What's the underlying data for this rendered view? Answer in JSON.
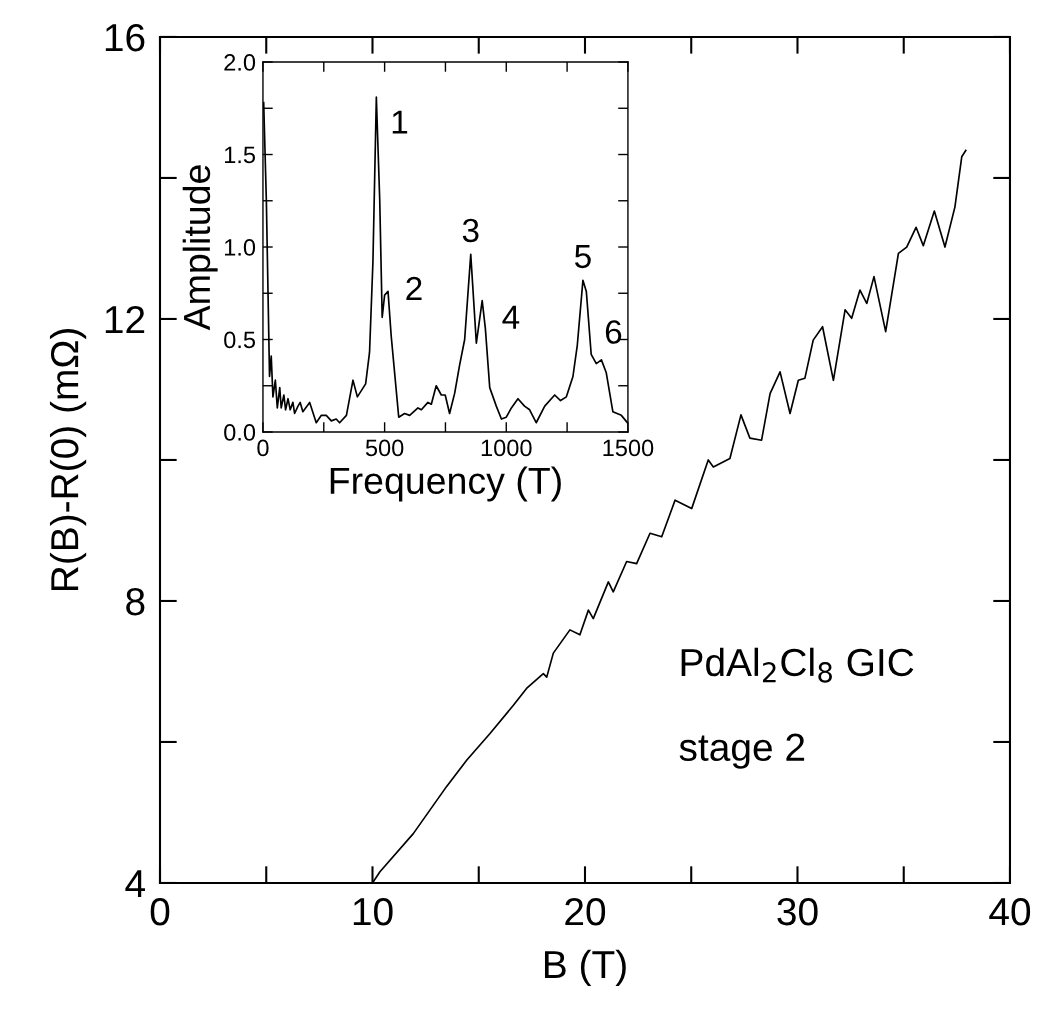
{
  "chart_data": [
    {
      "type": "line",
      "xlabel": "B (T)",
      "ylabel": "R(B)-R(0) (mΩ)",
      "xlim": [
        0,
        40
      ],
      "ylim": [
        4,
        16
      ],
      "xticks": [
        0,
        10,
        20,
        30,
        40
      ],
      "yticks": [
        4,
        8,
        12,
        16
      ],
      "series": [
        {
          "color": "#000000",
          "x": [
            10.0,
            10.35,
            11.92,
            13.49,
            14.43,
            15.53,
            16.63,
            17.25,
            18.04,
            18.2,
            18.51,
            19.29,
            19.76,
            20.16,
            20.39,
            21.1,
            21.33,
            21.96,
            22.43,
            23.06,
            23.61,
            24.24,
            25.02,
            25.8,
            26.04,
            26.82,
            27.34,
            27.76,
            28.31,
            28.71,
            29.18,
            29.65,
            30.04,
            30.35,
            30.74,
            31.18,
            31.69,
            32.24,
            32.55,
            32.94,
            33.26,
            33.6,
            34.15,
            34.75,
            35.14,
            35.58,
            35.92,
            36.44,
            36.94,
            37.41,
            37.73,
            37.92
          ],
          "values": [
            4.0,
            4.16,
            4.7,
            5.37,
            5.74,
            6.12,
            6.52,
            6.76,
            6.97,
            6.92,
            7.26,
            7.59,
            7.52,
            7.87,
            7.75,
            8.27,
            8.13,
            8.56,
            8.53,
            8.96,
            8.91,
            9.43,
            9.31,
            10.0,
            9.9,
            10.02,
            10.64,
            10.31,
            10.28,
            10.94,
            11.25,
            10.66,
            11.13,
            11.16,
            11.7,
            11.89,
            11.13,
            12.13,
            12.01,
            12.41,
            12.22,
            12.6,
            11.82,
            12.93,
            13.02,
            13.3,
            13.04,
            13.53,
            13.02,
            13.59,
            14.3,
            14.39
          ]
        }
      ],
      "annotations": [
        "PdAl$_{2}$Cl$_{8}$ GIC",
        "stage 2"
      ]
    },
    {
      "type": "line",
      "xlabel": "Frequency (T)",
      "ylabel": "Amplitude",
      "xlim": [
        0,
        1500
      ],
      "ylim": [
        0,
        2
      ],
      "xticks": [
        0,
        500,
        1000,
        1500
      ],
      "yticks": [
        {
          "value": 0,
          "label": "0.0"
        },
        {
          "value": 0.5,
          "label": "0.5"
        },
        {
          "value": 1,
          "label": "1.0"
        },
        {
          "value": 1.5,
          "label": "1.5"
        },
        {
          "value": 2,
          "label": "2.0"
        }
      ],
      "series": [
        {
          "color": "#000000",
          "x": [
            3,
            14,
            27,
            34,
            41,
            51,
            59,
            69,
            75,
            86,
            93,
            103,
            112,
            123,
            130,
            144,
            153,
            164,
            192,
            219,
            240,
            260,
            281,
            301,
            315,
            343,
            370,
            388,
            422,
            438,
            452,
            466,
            480,
            490,
            500,
            514,
            527,
            558,
            582,
            603,
            637,
            651,
            678,
            692,
            712,
            733,
            749,
            767,
            788,
            808,
            829,
            854,
            877,
            901,
            914,
            932,
            959,
            980,
            1000,
            1021,
            1048,
            1075,
            1096,
            1123,
            1158,
            1199,
            1223,
            1247,
            1274,
            1292,
            1315,
            1329,
            1349,
            1370,
            1391,
            1411,
            1438,
            1473,
            1498
          ],
          "values": [
            1.78,
            1.25,
            0.3,
            0.41,
            0.19,
            0.28,
            0.13,
            0.24,
            0.13,
            0.2,
            0.12,
            0.18,
            0.12,
            0.16,
            0.1,
            0.14,
            0.16,
            0.11,
            0.16,
            0.05,
            0.09,
            0.09,
            0.06,
            0.07,
            0.05,
            0.09,
            0.28,
            0.19,
            0.26,
            0.43,
            0.92,
            1.81,
            1.25,
            0.62,
            0.74,
            0.76,
            0.52,
            0.08,
            0.1,
            0.09,
            0.13,
            0.12,
            0.16,
            0.15,
            0.25,
            0.2,
            0.2,
            0.1,
            0.21,
            0.36,
            0.5,
            0.96,
            0.48,
            0.71,
            0.56,
            0.24,
            0.14,
            0.07,
            0.08,
            0.13,
            0.18,
            0.14,
            0.12,
            0.05,
            0.14,
            0.2,
            0.17,
            0.19,
            0.3,
            0.47,
            0.82,
            0.76,
            0.42,
            0.37,
            0.39,
            0.32,
            0.11,
            0.09,
            0.05
          ]
        }
      ],
      "annotations": [
        {
          "text": "1",
          "x": 466,
          "y": 1.81
        },
        {
          "text": "2",
          "x": 514,
          "y": 0.76
        },
        {
          "text": "3",
          "x": 854,
          "y": 0.96
        },
        {
          "text": "4",
          "x": 901,
          "y": 0.71
        },
        {
          "text": "5",
          "x": 1315,
          "y": 0.82
        },
        {
          "text": "6",
          "x": 1391,
          "y": 0.39
        }
      ]
    }
  ]
}
